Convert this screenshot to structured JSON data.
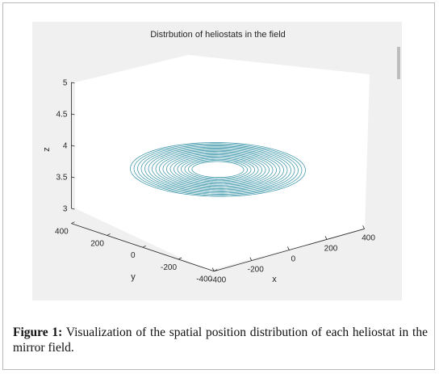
{
  "chart_data": {
    "type": "line3d",
    "title": "Distrbution of heliostats in the field",
    "xlabel": "x",
    "ylabel": "y",
    "zlabel": "z",
    "xlim": [
      -400,
      400
    ],
    "ylim": [
      -400,
      400
    ],
    "zlim": [
      3,
      5
    ],
    "x_ticks": [
      "-400",
      "-200",
      "0",
      "200",
      "400"
    ],
    "y_ticks": [
      "-400",
      "-200",
      "0",
      "200",
      "400"
    ],
    "z_ticks": [
      "3",
      "3.5",
      "4",
      "4.5",
      "5"
    ],
    "z_level": 3.9,
    "ring_radii": [
      100,
      114,
      128,
      142,
      156,
      170,
      184,
      198,
      212,
      226,
      240,
      254,
      268,
      282,
      296,
      310,
      324,
      338
    ],
    "ring_color": "#2f8fa3",
    "grid": false
  },
  "caption": {
    "label": "Figure 1:",
    "text": "Visualization of the spatial position distribution of each heliostat in the mirror field."
  }
}
